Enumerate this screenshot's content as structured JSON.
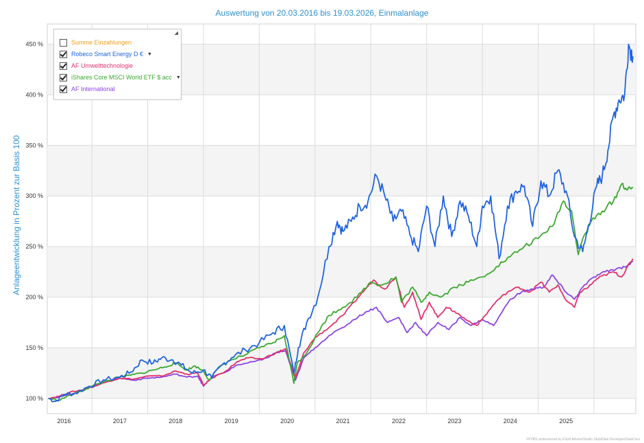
{
  "chart_data": {
    "type": "line",
    "title": "Auswertung von 20.03.2016 bis 19.03.2026, Einmalanlage",
    "ylabel": "Anlageentwicklung  in Prozent zur Basis 100",
    "xlabel": "",
    "xlim": [
      2015.7,
      2026.25
    ],
    "ylim": [
      85,
      470
    ],
    "yticks": [
      100,
      150,
      200,
      250,
      300,
      350,
      400,
      450
    ],
    "ytick_labels": [
      "100 %",
      "150 %",
      "200 %",
      "250 %",
      "300 %",
      "350 %",
      "400 %",
      "450 %"
    ],
    "xtick_labels": [
      "2016",
      "2017",
      "2018",
      "2019",
      "2020",
      "2021",
      "2022",
      "2023",
      "2024",
      "2025"
    ],
    "xtick_positions": [
      2016.0,
      2017.0,
      2018.0,
      2019.0,
      2020.0,
      2021.0,
      2022.0,
      2023.0,
      2024.0,
      2025.0
    ],
    "grid": true,
    "legend_position": "top-left",
    "series": [
      {
        "name": "Robeco Smart Energy D €",
        "color": "#1f63e0",
        "has_dropdown": true,
        "checked": true,
        "x": [
          2015.72,
          2015.85,
          2016.0,
          2016.2,
          2016.45,
          2016.7,
          2017.0,
          2017.2,
          2017.4,
          2017.6,
          2017.75,
          2017.95,
          2018.1,
          2018.3,
          2018.5,
          2018.65,
          2018.85,
          2019.0,
          2019.25,
          2019.5,
          2019.75,
          2019.95,
          2020.12,
          2020.2,
          2020.35,
          2020.55,
          2020.75,
          2020.9,
          2021.0,
          2021.15,
          2021.3,
          2021.45,
          2021.6,
          2021.75,
          2021.9,
          2022.05,
          2022.2,
          2022.35,
          2022.5,
          2022.65,
          2022.8,
          2022.95,
          2023.1,
          2023.25,
          2023.4,
          2023.5,
          2023.65,
          2023.8,
          2023.95,
          2024.1,
          2024.25,
          2024.4,
          2024.55,
          2024.7,
          2024.85,
          2025.0,
          2025.15,
          2025.3,
          2025.4,
          2025.55,
          2025.65,
          2025.75,
          2025.85,
          2025.95,
          2026.05,
          2026.12,
          2026.2
        ],
        "y": [
          100,
          97,
          104,
          105,
          112,
          118,
          121,
          126,
          138,
          135,
          140,
          138,
          133,
          125,
          128,
          120,
          134,
          140,
          148,
          155,
          165,
          172,
          125,
          150,
          175,
          200,
          250,
          275,
          265,
          275,
          290,
          295,
          320,
          300,
          275,
          285,
          262,
          245,
          290,
          250,
          300,
          260,
          295,
          280,
          250,
          290,
          300,
          238,
          290,
          305,
          310,
          270,
          315,
          300,
          325,
          305,
          260,
          245,
          270,
          310,
          320,
          345,
          380,
          395,
          400,
          450,
          438
        ]
      },
      {
        "name": "AF Umwelttechnologie",
        "color": "#e23068",
        "has_dropdown": false,
        "checked": true,
        "x": [
          2015.72,
          2015.9,
          2016.1,
          2016.3,
          2016.55,
          2016.8,
          2017.0,
          2017.25,
          2017.5,
          2017.75,
          2018.0,
          2018.2,
          2018.4,
          2018.5,
          2018.65,
          2018.9,
          2019.1,
          2019.3,
          2019.55,
          2019.8,
          2019.97,
          2020.15,
          2020.3,
          2020.5,
          2020.75,
          2021.0,
          2021.2,
          2021.4,
          2021.55,
          2021.75,
          2021.95,
          2022.1,
          2022.25,
          2022.4,
          2022.55,
          2022.7,
          2022.85,
          2023.0,
          2023.2,
          2023.4,
          2023.55,
          2023.75,
          2023.95,
          2024.15,
          2024.35,
          2024.55,
          2024.7,
          2024.85,
          2025.0,
          2025.15,
          2025.25,
          2025.4,
          2025.55,
          2025.7,
          2025.85,
          2026.0,
          2026.1,
          2026.2
        ],
        "y": [
          100,
          102,
          106,
          108,
          112,
          117,
          120,
          119,
          122,
          122,
          127,
          124,
          125,
          113,
          120,
          127,
          136,
          140,
          139,
          145,
          149,
          120,
          145,
          160,
          170,
          182,
          195,
          208,
          217,
          208,
          220,
          190,
          205,
          178,
          195,
          180,
          190,
          186,
          178,
          172,
          182,
          196,
          205,
          210,
          205,
          215,
          205,
          212,
          197,
          190,
          205,
          210,
          218,
          222,
          225,
          220,
          230,
          238
        ]
      },
      {
        "name": "iShares Core MSCI World ETF $ acc",
        "color": "#3aa82e",
        "has_dropdown": true,
        "checked": true,
        "x": [
          2015.72,
          2015.9,
          2016.1,
          2016.3,
          2016.5,
          2016.75,
          2017.0,
          2017.2,
          2017.4,
          2017.6,
          2017.8,
          2018.0,
          2018.2,
          2018.35,
          2018.5,
          2018.6,
          2018.8,
          2019.0,
          2019.25,
          2019.5,
          2019.75,
          2019.95,
          2020.12,
          2020.18,
          2020.35,
          2020.55,
          2020.75,
          2021.0,
          2021.25,
          2021.5,
          2021.7,
          2021.95,
          2022.05,
          2022.25,
          2022.4,
          2022.55,
          2022.75,
          2023.0,
          2023.25,
          2023.5,
          2023.75,
          2024.0,
          2024.25,
          2024.5,
          2024.75,
          2024.95,
          2025.1,
          2025.22,
          2025.3,
          2025.45,
          2025.65,
          2025.85,
          2026.0,
          2026.1,
          2026.2
        ],
        "y": [
          100,
          98,
          103,
          107,
          112,
          117,
          121,
          123,
          125,
          128,
          131,
          135,
          128,
          132,
          127,
          118,
          132,
          138,
          143,
          150,
          155,
          162,
          115,
          135,
          145,
          165,
          182,
          190,
          200,
          215,
          212,
          220,
          195,
          210,
          195,
          205,
          200,
          210,
          215,
          220,
          230,
          240,
          250,
          258,
          270,
          295,
          285,
          242,
          258,
          275,
          285,
          295,
          312,
          306,
          308
        ]
      },
      {
        "name": "AF International",
        "color": "#8b44e6",
        "has_dropdown": false,
        "checked": true,
        "x": [
          2015.72,
          2015.9,
          2016.1,
          2016.3,
          2016.55,
          2016.8,
          2017.0,
          2017.25,
          2017.5,
          2017.75,
          2018.0,
          2018.2,
          2018.4,
          2018.5,
          2018.65,
          2018.9,
          2019.1,
          2019.3,
          2019.55,
          2019.8,
          2019.97,
          2020.15,
          2020.3,
          2020.5,
          2020.75,
          2021.0,
          2021.2,
          2021.4,
          2021.6,
          2021.8,
          2022.0,
          2022.15,
          2022.3,
          2022.5,
          2022.7,
          2022.9,
          2023.1,
          2023.3,
          2023.5,
          2023.7,
          2024.0,
          2024.2,
          2024.4,
          2024.6,
          2024.75,
          2024.85,
          2025.0,
          2025.15,
          2025.3,
          2025.5,
          2025.7,
          2025.9,
          2026.05,
          2026.2
        ],
        "y": [
          100,
          101,
          104,
          107,
          113,
          117,
          120,
          118,
          120,
          121,
          124,
          121,
          122,
          112,
          121,
          126,
          133,
          135,
          138,
          145,
          147,
          118,
          140,
          150,
          162,
          170,
          178,
          185,
          190,
          175,
          180,
          165,
          175,
          162,
          175,
          168,
          180,
          172,
          178,
          172,
          198,
          205,
          208,
          210,
          222,
          215,
          205,
          198,
          210,
          220,
          225,
          228,
          230,
          235
        ]
      }
    ],
    "legend": [
      {
        "name": "Summe Einzahlungen",
        "color": "#f0a020",
        "checked": false,
        "has_dropdown": false
      }
    ]
  },
  "footer": "VFVBS professional by ESoft AdvisorStudio StatsData DeveloperDataCore"
}
